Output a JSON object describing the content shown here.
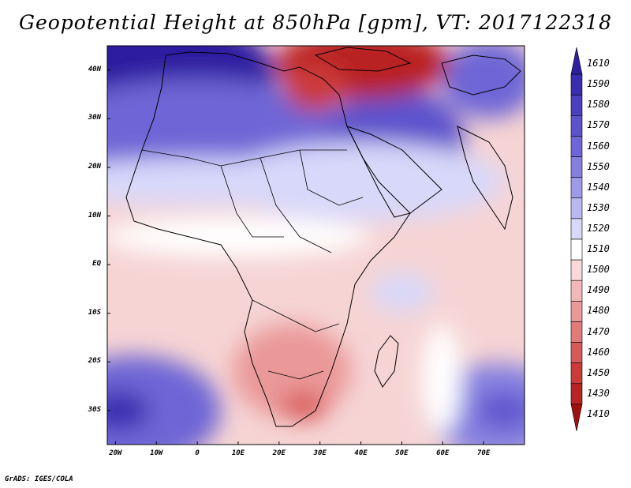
{
  "title": "Geopotential Height at 850hPa [gpm], VT: 2017122318",
  "footer": "GrADS: IGES/COLA",
  "map": {
    "lat_labels": [
      "40N",
      "30N",
      "20N",
      "10N",
      "EQ",
      "10S",
      "20S",
      "30S"
    ],
    "lon_labels": [
      "20W",
      "10W",
      "0",
      "10E",
      "20E",
      "30E",
      "40E",
      "50E",
      "60E",
      "70E"
    ],
    "lon_range": [
      -22,
      80
    ],
    "lat_range": [
      -37,
      45
    ]
  },
  "colorbar": {
    "levels": [
      "1610",
      "1590",
      "1580",
      "1570",
      "1560",
      "1550",
      "1540",
      "1530",
      "1520",
      "1510",
      "1500",
      "1490",
      "1480",
      "1470",
      "1460",
      "1450",
      "1430",
      "1410"
    ],
    "colors": [
      "#2e1ea0",
      "#3a2eb0",
      "#4a3fc0",
      "#5d53cc",
      "#6e66d6",
      "#8580e0",
      "#9d9aea",
      "#b9b8f2",
      "#d8d8fa",
      "#ffffff",
      "#f9d9d9",
      "#f2b8b8",
      "#ea9898",
      "#e27a7a",
      "#d95a5a",
      "#cc3a3a",
      "#b92323",
      "#a01010"
    ]
  }
}
